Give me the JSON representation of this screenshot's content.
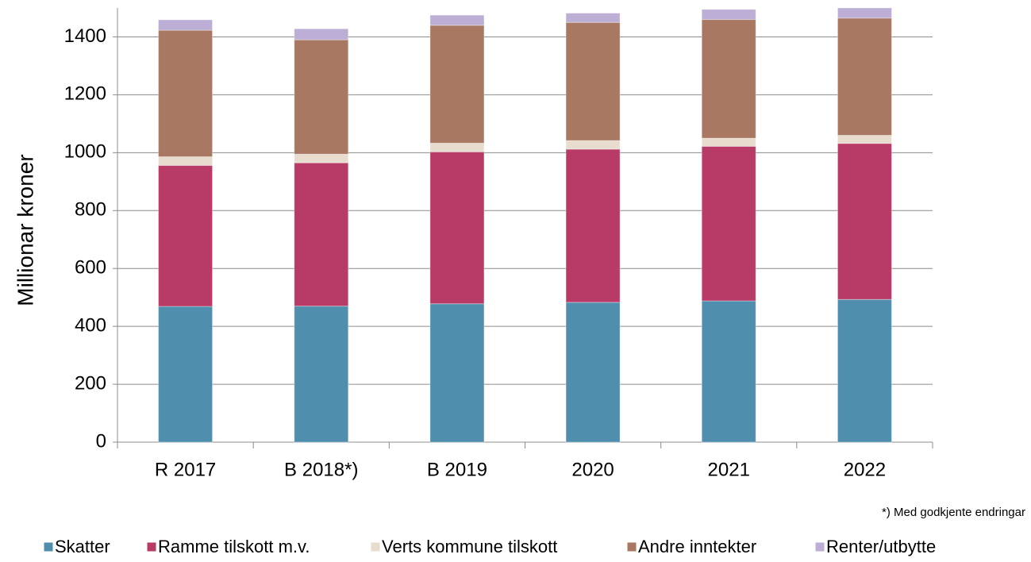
{
  "chart_data": {
    "type": "bar",
    "stacked": true,
    "y_label": "Millionar kroner",
    "note": "*) Med godkjente endringar",
    "categories": [
      "R 2017",
      "B 2018*)",
      "B 2019",
      "2020",
      "2021",
      "2022"
    ],
    "series": [
      {
        "name": "Skatter",
        "color": "#4f8fad",
        "values": [
          469,
          470,
          478,
          483,
          488,
          493
        ]
      },
      {
        "name": "Ramme tilskott m.v.",
        "color": "#b83a66",
        "values": [
          487,
          495,
          525,
          529,
          534,
          539
        ]
      },
      {
        "name": "Verts kommune tilskott",
        "color": "#e8dccf",
        "values": [
          30,
          30,
          30,
          30,
          28,
          28
        ]
      },
      {
        "name": "Andre inntekter",
        "color": "#a87862",
        "values": [
          437,
          395,
          407,
          408,
          410,
          405
        ]
      },
      {
        "name": "Renter/utbytte",
        "color": "#bcaed4",
        "values": [
          36,
          38,
          35,
          32,
          35,
          35
        ]
      }
    ],
    "ylim": [
      0,
      1500
    ],
    "yticks": [
      0,
      200,
      400,
      600,
      800,
      1000,
      1200,
      1400
    ],
    "grid": true
  }
}
